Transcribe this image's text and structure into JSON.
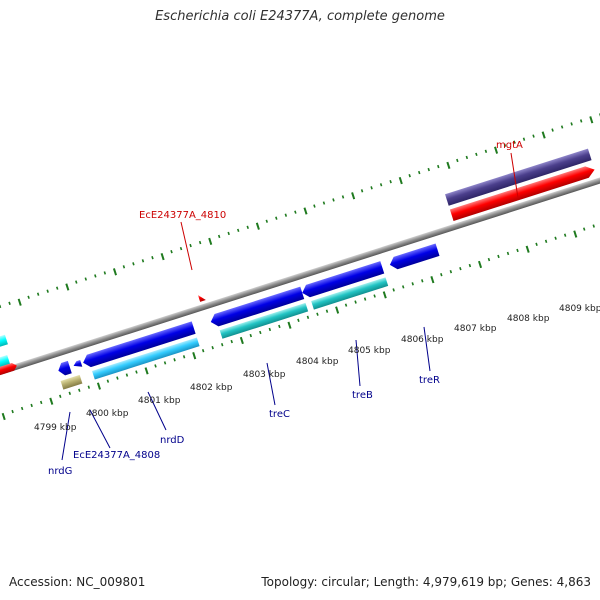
{
  "title": "Escherichia coli E24377A, complete genome",
  "footer": {
    "accession": "Accession: NC_009801",
    "summary": "Topology: circular; Length: 4,979,619 bp; Genes: 4,863"
  },
  "scale_labels": [
    "4799 kbp",
    "4800 kbp",
    "4801 kbp",
    "4802 kbp",
    "4803 kbp",
    "4804 kbp",
    "4805 kbp",
    "4806 kbp",
    "4807 kbp",
    "4808 kbp",
    "4809 kbp"
  ],
  "gene_labels": [
    {
      "text": "mgtA",
      "color": "#cc0000"
    },
    {
      "text": "EcE24377A_4810",
      "color": "#cc0000"
    },
    {
      "text": "nrdG",
      "color": "#00008b"
    },
    {
      "text": "EcE24377A_4808",
      "color": "#00008b"
    },
    {
      "text": "nrdD",
      "color": "#00008b"
    },
    {
      "text": "treC",
      "color": "#00008b"
    },
    {
      "text": "treB",
      "color": "#00008b"
    },
    {
      "text": "treR",
      "color": "#00008b"
    }
  ],
  "colors": {
    "backbone": "#8c8c8c",
    "tick": "#1f7a1f",
    "forward_cds": "#ff0000",
    "reverse_cds": "#0000e6",
    "light_blue": "#33ccff",
    "teal": "#22c4c4",
    "purple": "#4b3f8c",
    "olive": "#b8b070",
    "light_cyan": "#00ffff"
  }
}
